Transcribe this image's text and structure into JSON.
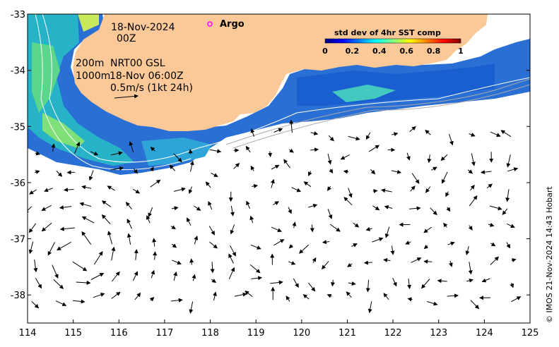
{
  "map": {
    "lon_range": [
      114,
      125
    ],
    "lat_range": [
      -38.5,
      -33
    ],
    "x_ticks": [
      "114",
      "115",
      "116",
      "117",
      "118",
      "119",
      "120",
      "121",
      "122",
      "123",
      "124",
      "125"
    ],
    "y_ticks": [
      "-33",
      "-34",
      "-35",
      "-36",
      "-37",
      "-38"
    ],
    "land_color": "#fbc998",
    "date_label": "18-Nov-2024",
    "time_label": "00Z",
    "contour_labels": [
      "200m",
      "1000m"
    ],
    "product_label": "NRT00 GSL",
    "product_time": "18-Nov 06:00Z",
    "scale_label": "0.5m/s (1kt 24h)",
    "argo_label": "Argo",
    "argo_color": "#ff00ff",
    "colorbar": {
      "title": "std dev of 4hr SST comp",
      "ticks": [
        "0",
        "0.2",
        "0.4",
        "0.6",
        "0.8",
        "1"
      ],
      "range": [
        0,
        1
      ],
      "colors": [
        "#00007f",
        "#0000ff",
        "#007fff",
        "#00ffff",
        "#7fff7f",
        "#ffff00",
        "#ff7f00",
        "#ff0000",
        "#7f0000"
      ]
    },
    "copyright": "© IMOS 21-Nov-2024 14:43 Hobart"
  }
}
